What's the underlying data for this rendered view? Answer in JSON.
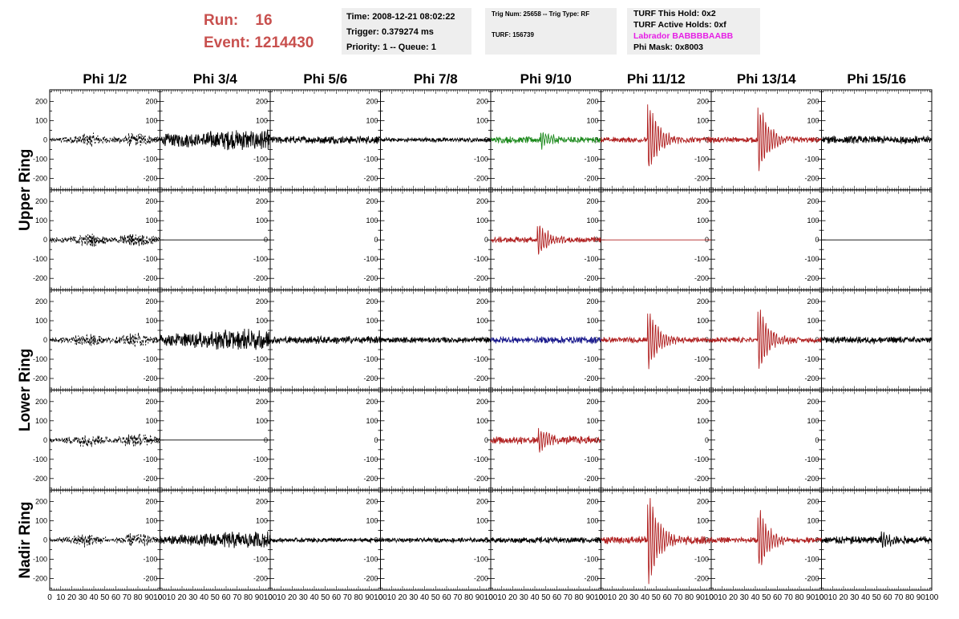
{
  "header": {
    "run_label": "Run:",
    "run_value": "16",
    "event_label": "Event:",
    "event_value": "1214430",
    "time_box": {
      "time": "Time: 2008-12-21 08:02:22",
      "trigger": "Trigger: 0.379274 ms",
      "priority": "Priority: 1 -- Queue: 1"
    },
    "trig_box": {
      "trig": "Trig Num: 25658 -- Trig Type: RF",
      "turf": "TURF: 156739"
    },
    "turf_box": {
      "hold": "TURF This Hold: 0x2",
      "active": "TURF Active Holds: 0xf",
      "labrador": "Labrador BABBBBAABB",
      "phimask": "Phi Mask: 0x8003"
    }
  },
  "chart_data": {
    "type": "line",
    "columns": [
      "Phi 1/2",
      "Phi 3/4",
      "Phi 5/6",
      "Phi 7/8",
      "Phi 9/10",
      "Phi 11/12",
      "Phi 13/14",
      "Phi 15/16"
    ],
    "row_groups": [
      {
        "label": "Upper Ring",
        "rows": [
          0,
          1
        ]
      },
      {
        "label": "Lower Ring",
        "rows": [
          2,
          3
        ]
      },
      {
        "label": "Nadir Ring",
        "rows": [
          4
        ]
      }
    ],
    "xlim": [
      0,
      100
    ],
    "ylim": [
      -260,
      260
    ],
    "x_ticks": [
      "0",
      "10",
      "20",
      "30",
      "40",
      "50",
      "60",
      "70",
      "80",
      "90",
      "100"
    ],
    "y_ticks": [
      "200",
      "100",
      "0",
      "-100",
      "-200"
    ],
    "y_tick_values": [
      200,
      100,
      0,
      -100,
      -200
    ],
    "colors": {
      "black": "#000000",
      "red": "#b02020",
      "green": "#1e8a1e",
      "blue": "#1a1a8c"
    },
    "waveforms": [
      [
        {
          "color": "black",
          "dashed": true,
          "amp": 30,
          "profile": "bimodal"
        },
        {
          "color": "black",
          "amp": 45,
          "profile": "rise"
        },
        {
          "color": "black",
          "amp": 20,
          "profile": "flat"
        },
        {
          "color": "black",
          "amp": 12,
          "profile": "flat"
        },
        {
          "color": "green",
          "amp": 18,
          "pulse": {
            "center": 47,
            "amp": 45
          }
        },
        {
          "color": "red",
          "amp": 15,
          "pulse": {
            "center": 44,
            "amp": 190
          }
        },
        {
          "color": "red",
          "amp": 15,
          "pulse": {
            "center": 44,
            "amp": 190
          }
        },
        {
          "color": "black",
          "amp": 20,
          "profile": "flat"
        }
      ],
      [
        {
          "color": "black",
          "dashed": true,
          "amp": 30,
          "profile": "bimodal"
        },
        {
          "color": "black",
          "flatline": true
        },
        null,
        null,
        {
          "color": "red",
          "amp": 15,
          "pulse": {
            "center": 44,
            "amp": 90
          }
        },
        {
          "color": "red",
          "flatline": true
        },
        null,
        {
          "color": "black",
          "flatline": true
        }
      ],
      [
        {
          "color": "black",
          "dashed": true,
          "amp": 30,
          "profile": "bimodal"
        },
        {
          "color": "black",
          "amp": 45,
          "profile": "rise"
        },
        {
          "color": "black",
          "amp": 20,
          "profile": "flat"
        },
        {
          "color": "black",
          "amp": 15,
          "profile": "flat"
        },
        {
          "color": "blue",
          "amp": 18,
          "profile": "flat"
        },
        {
          "color": "red",
          "amp": 15,
          "pulse": {
            "center": 44,
            "amp": 160
          }
        },
        {
          "color": "red",
          "amp": 15,
          "pulse": {
            "center": 44,
            "amp": 180
          }
        },
        {
          "color": "black",
          "amp": 18,
          "profile": "flat"
        }
      ],
      [
        {
          "color": "black",
          "dashed": true,
          "amp": 30,
          "profile": "bimodal"
        },
        {
          "color": "black",
          "flatline": true
        },
        null,
        null,
        {
          "color": "red",
          "amp": 20,
          "pulse": {
            "center": 45,
            "amp": 70
          }
        },
        null,
        null,
        null
      ],
      [
        {
          "color": "black",
          "dashed": true,
          "amp": 30,
          "profile": "bimodal"
        },
        {
          "color": "black",
          "amp": 35,
          "profile": "rise"
        },
        {
          "color": "black",
          "amp": 12,
          "profile": "flat"
        },
        {
          "color": "black",
          "amp": 12,
          "profile": "flat"
        },
        {
          "color": "black",
          "amp": 15,
          "profile": "flat"
        },
        {
          "color": "red",
          "amp": 20,
          "pulse": {
            "center": 44,
            "amp": 250
          }
        },
        {
          "color": "red",
          "amp": 15,
          "pulse": {
            "center": 44,
            "amp": 160
          }
        },
        {
          "color": "black",
          "amp": 20,
          "pulse": {
            "center": 56,
            "amp": 35
          }
        }
      ]
    ]
  }
}
